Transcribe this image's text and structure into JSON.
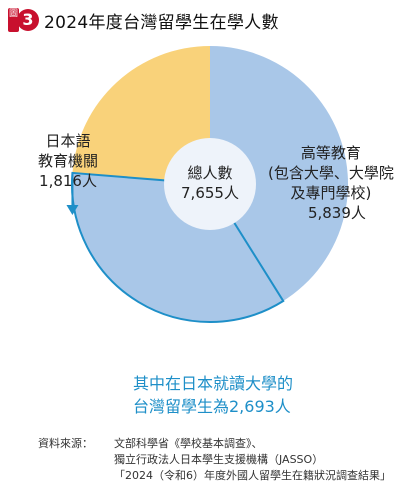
{
  "header": {
    "badge_char": "圖",
    "badge_num": "3",
    "title": "2024年度台灣留學生在學人數"
  },
  "chart_data": {
    "type": "pie",
    "title": "2024年度台灣留學生在學人數",
    "total_label": "總人數",
    "total_value": "7,655人",
    "slices": [
      {
        "name_lines": [
          "高等教育",
          "(包含大學、大學院",
          "及專門學校)"
        ],
        "value": 5839,
        "value_label": "5,839人",
        "color": "#a9c7e8"
      },
      {
        "name_lines": [
          "日本語",
          "教育機關"
        ],
        "value": 1816,
        "value_label": "1,816人",
        "color": "#f9d27a"
      }
    ],
    "highlight": {
      "value": 2693,
      "lines": [
        "其中在日本就讀大學的",
        "台灣留學生為2,693人"
      ],
      "color": "#1e8fc8"
    }
  },
  "source": {
    "head": "資料來源：",
    "lines": [
      "文部科學省《學校基本調查》、",
      "獨立行政法人日本學生支援機構（JASSO）",
      "「2024（令和6）年度外國人留學生在籍狀況調查結果」"
    ]
  }
}
